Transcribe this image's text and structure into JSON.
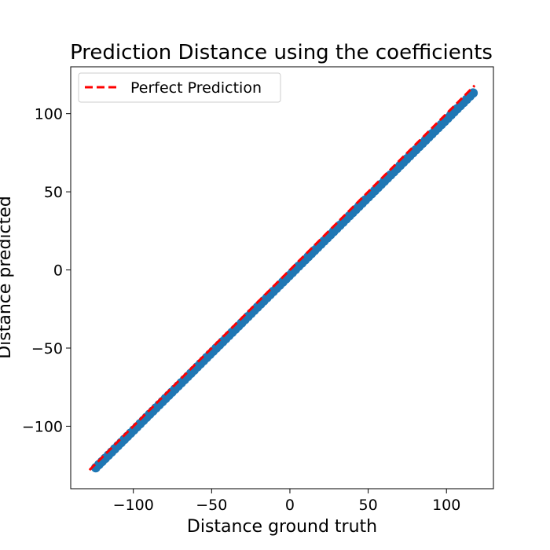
{
  "colors": {
    "scatter": "#1f77b4",
    "perfect_line": "#ff0000",
    "axes": "#000000",
    "legend_border": "#cccccc",
    "background": "#ffffff"
  },
  "chart_data": {
    "type": "scatter",
    "title": "Prediction Distance using the coefficients",
    "xlabel": "Distance ground truth",
    "ylabel": "Distance predicted",
    "xlim": [
      -140,
      130
    ],
    "ylim": [
      -140,
      130
    ],
    "xticks": [
      -100,
      -50,
      0,
      50,
      100
    ],
    "yticks": [
      -100,
      -50,
      0,
      50,
      100
    ],
    "x_tick_labels": [
      "−100",
      "−50",
      "0",
      "50",
      "100"
    ],
    "y_tick_labels": [
      "−100",
      "−50",
      "0",
      "50",
      "100"
    ],
    "grid": false,
    "legend": {
      "position": "upper-left",
      "entries": [
        "Perfect Prediction"
      ]
    },
    "reference_line": {
      "name": "Perfect Prediction",
      "style": "dashed",
      "color": "#ff0000",
      "x": [
        -128,
        118
      ],
      "y": [
        -128,
        118
      ]
    },
    "series": [
      {
        "marker": "circle",
        "color": "#1f77b4",
        "points": {
          "x_start": -124,
          "x_end": 117,
          "count": 120,
          "fit_slope": 0.995,
          "fit_intercept": -3.2
        }
      }
    ]
  }
}
